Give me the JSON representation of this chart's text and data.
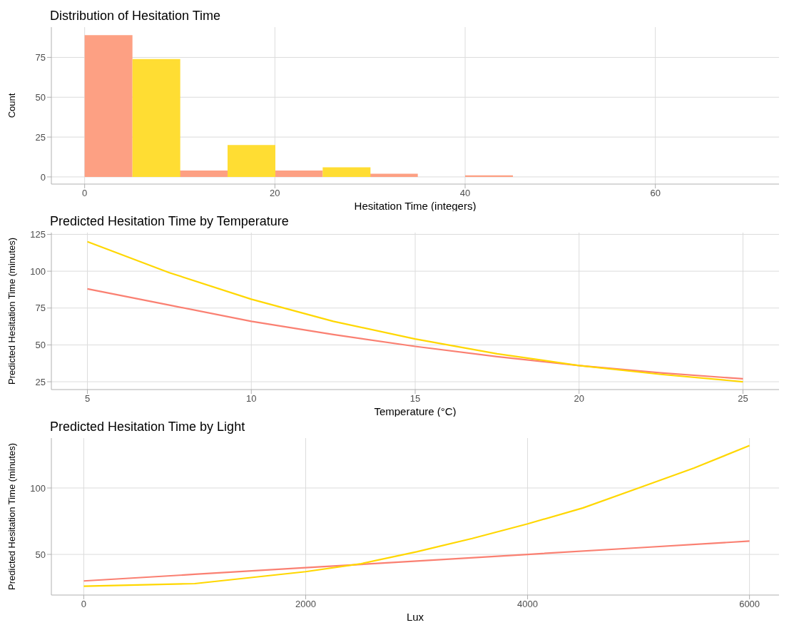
{
  "chart_data": [
    {
      "type": "histogram",
      "title": "Distribution of Hesitation Time",
      "xlabel": "Hesitation Time (integers)",
      "ylabel": "Count",
      "bins": [
        0,
        10,
        20,
        30,
        40,
        50,
        60,
        70
      ],
      "series": [
        {
          "color": "#fda083",
          "values": [
            89,
            4,
            4,
            2,
            1,
            0,
            0
          ]
        },
        {
          "color": "#ffdd33",
          "values": [
            74,
            20,
            6,
            0,
            0,
            0,
            0
          ]
        }
      ],
      "xlim": [
        -3.5,
        73
      ],
      "xticks": [
        0,
        20,
        40,
        60
      ],
      "ylim": [
        -4.5,
        94
      ],
      "yticks": [
        0,
        25,
        50,
        75
      ],
      "grid": true
    },
    {
      "type": "line",
      "title": "Predicted Hesitation Time by Temperature",
      "xlabel": "Temperature (°C)",
      "ylabel": "Predicted Hesitation Time (minutes)",
      "x": [
        5,
        7.5,
        10,
        12.5,
        15,
        17.5,
        20,
        22.5,
        25
      ],
      "series": [
        {
          "color": "#fa8072",
          "values": [
            88,
            77,
            66,
            57,
            49,
            42,
            36,
            31,
            27
          ]
        },
        {
          "color": "#ffd700",
          "values": [
            120,
            99,
            81,
            66,
            54,
            44,
            36,
            30,
            25
          ]
        }
      ],
      "xlim": [
        3.9,
        26.1
      ],
      "xticks": [
        5,
        10,
        15,
        20,
        25
      ],
      "ylim": [
        19.7,
        126.2
      ],
      "yticks": [
        25,
        50,
        75,
        100,
        125
      ],
      "grid": true,
      "marker": "none",
      "line_style": "solid"
    },
    {
      "type": "line",
      "title": "Predicted Hesitation Time by Light",
      "xlabel": "Lux",
      "ylabel": "Predicted Hesitation Time (minutes)",
      "series": [
        {
          "color": "#fa8072",
          "x": [
            0,
            1000,
            2000,
            3000,
            4000,
            5000,
            6000
          ],
          "values": [
            30,
            35,
            40,
            45,
            50,
            55,
            60
          ]
        },
        {
          "color": "#ffd700",
          "x": [
            0,
            1000,
            2000,
            2500,
            3000,
            3500,
            4000,
            4500,
            5000,
            5500,
            6000
          ],
          "values": [
            26,
            28,
            37,
            43,
            52,
            62,
            73,
            85,
            100,
            115,
            132
          ]
        }
      ],
      "xlim": [
        -292,
        6266
      ],
      "xticks": [
        0,
        2000,
        4000,
        6000
      ],
      "ylim": [
        19.4,
        137.6
      ],
      "yticks": [
        50,
        100
      ],
      "grid": true,
      "marker": "none",
      "line_style": "solid"
    }
  ]
}
